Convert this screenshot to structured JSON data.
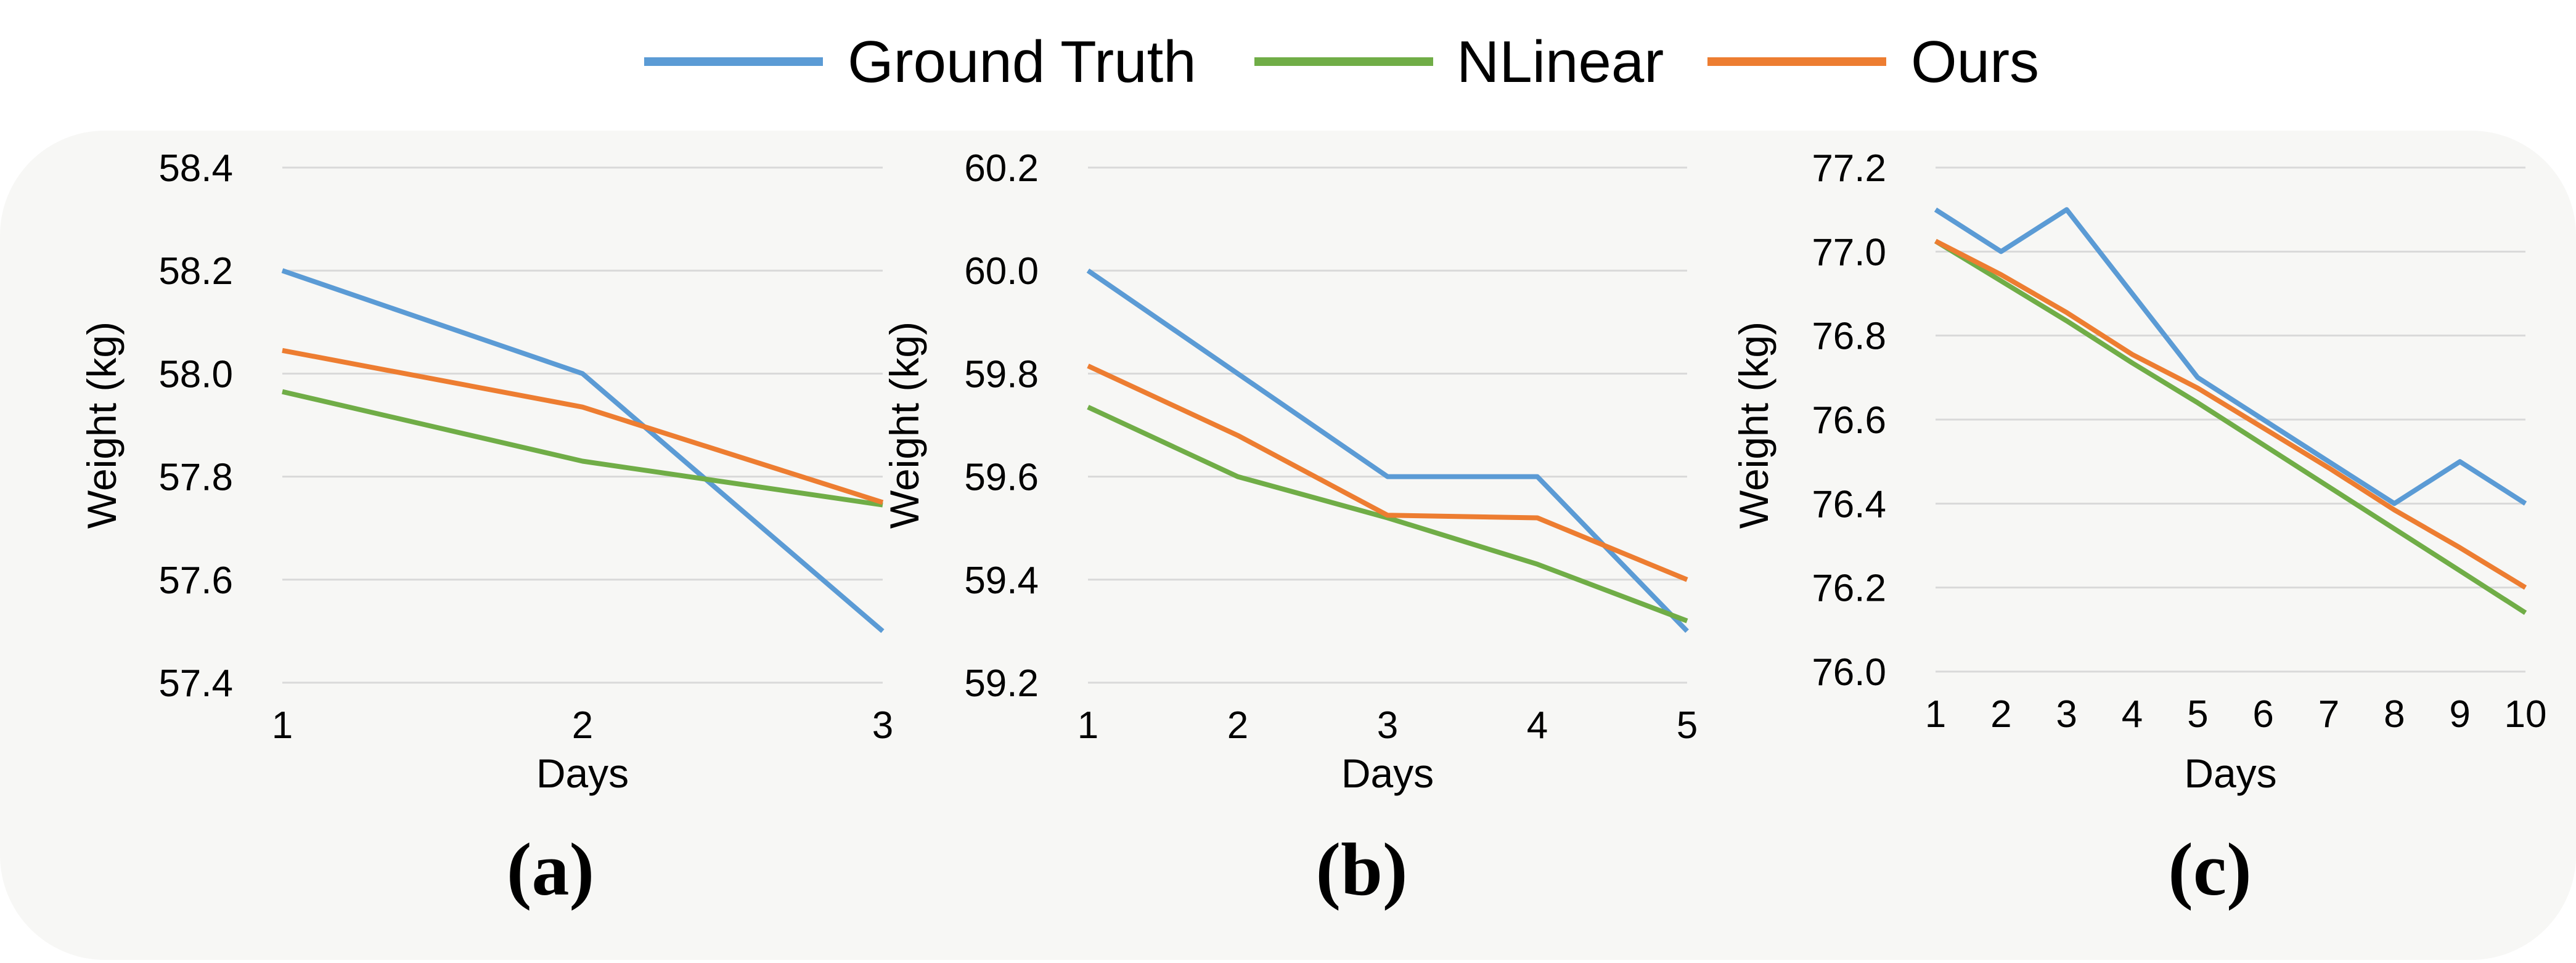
{
  "colors": {
    "Ground Truth": "#5b9bd5",
    "NLinear": "#70ad47",
    "Ours": "#ed7d31",
    "grid": "#d9d9d9",
    "panel_background": "#f7f7f5"
  },
  "legend": {
    "items": [
      {
        "label": "Ground Truth",
        "color": "#5b9bd5"
      },
      {
        "label": "NLinear",
        "color": "#70ad47"
      },
      {
        "label": "Ours",
        "color": "#ed7d31"
      }
    ],
    "placement": "top-center"
  },
  "chart_data": [
    {
      "type": "line",
      "caption": "(a)",
      "xlabel": "Days",
      "ylabel": "Weight (kg)",
      "x": [
        1,
        2,
        3
      ],
      "xticks": [
        "1",
        "2",
        "3"
      ],
      "ylim": [
        57.4,
        58.4
      ],
      "yticks": [
        "57.4",
        "57.6",
        "57.8",
        "58.0",
        "58.2",
        "58.4"
      ],
      "grid": true,
      "series": [
        {
          "name": "Ground Truth",
          "values": [
            58.2,
            58.0,
            57.5
          ]
        },
        {
          "name": "NLinear",
          "values": [
            57.965,
            57.83,
            57.745
          ]
        },
        {
          "name": "Ours",
          "values": [
            58.045,
            57.935,
            57.75
          ]
        }
      ]
    },
    {
      "type": "line",
      "caption": "(b)",
      "xlabel": "Days",
      "ylabel": "Weight (kg)",
      "x": [
        1,
        2,
        3,
        4,
        5
      ],
      "xticks": [
        "1",
        "2",
        "3",
        "4",
        "5"
      ],
      "ylim": [
        59.2,
        60.2
      ],
      "yticks": [
        "59.2",
        "59.4",
        "59.6",
        "59.8",
        "60.0",
        "60.2"
      ],
      "grid": true,
      "series": [
        {
          "name": "Ground Truth",
          "values": [
            60.0,
            59.8,
            59.6,
            59.6,
            59.3
          ]
        },
        {
          "name": "NLinear",
          "values": [
            59.735,
            59.6,
            59.52,
            59.43,
            59.32
          ]
        },
        {
          "name": "Ours",
          "values": [
            59.815,
            59.68,
            59.525,
            59.52,
            59.4
          ]
        }
      ]
    },
    {
      "type": "line",
      "caption": "(c)",
      "xlabel": "Days",
      "ylabel": "Weight (kg)",
      "x": [
        1,
        2,
        3,
        4,
        5,
        6,
        7,
        8,
        9,
        10
      ],
      "xticks": [
        "1",
        "2",
        "3",
        "4",
        "5",
        "6",
        "7",
        "8",
        "9",
        "10"
      ],
      "ylim": [
        76.0,
        77.2
      ],
      "yticks": [
        "76.0",
        "76.2",
        "76.4",
        "76.6",
        "76.8",
        "77.0",
        "77.2"
      ],
      "grid": true,
      "series": [
        {
          "name": "Ground Truth",
          "values": [
            77.1,
            77.0,
            77.1,
            76.9,
            76.7,
            76.6,
            76.5,
            76.4,
            76.5,
            76.4
          ]
        },
        {
          "name": "NLinear",
          "values": [
            77.025,
            76.93,
            76.835,
            76.735,
            76.64,
            76.54,
            76.44,
            76.34,
            76.24,
            76.14
          ]
        },
        {
          "name": "Ours",
          "values": [
            77.025,
            76.945,
            76.855,
            76.755,
            76.675,
            76.58,
            76.485,
            76.385,
            76.295,
            76.2
          ]
        }
      ]
    }
  ]
}
